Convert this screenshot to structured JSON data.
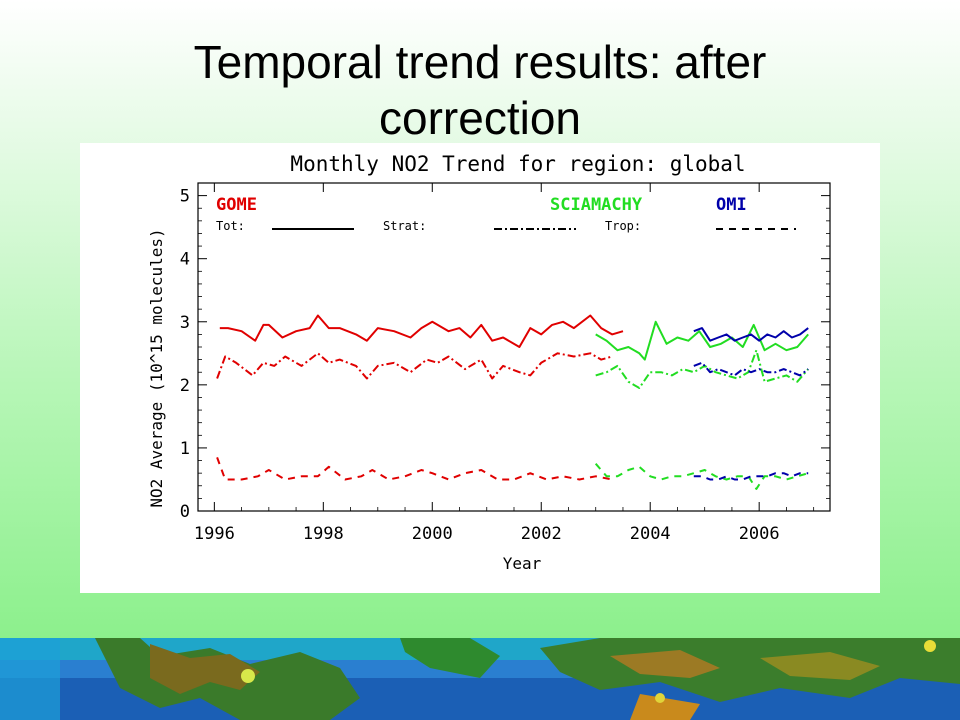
{
  "slide": {
    "title_line1": "Temporal trend results: after",
    "title_line2": "correction"
  },
  "chart_data": {
    "type": "line",
    "title": "Monthly NO2 Trend for region: global",
    "xlabel": "Year",
    "ylabel": "NO2 Average (10^15 molecules)",
    "xlim": [
      1995.7,
      2007.3
    ],
    "ylim": [
      0,
      5.2
    ],
    "xticks": [
      1996,
      1998,
      2000,
      2002,
      2004,
      2006
    ],
    "yticks": [
      0,
      1,
      2,
      3,
      4,
      5
    ],
    "grid": false,
    "legend": {
      "instruments": [
        {
          "name": "GOME",
          "color": "#e00000"
        },
        {
          "name": "SCIAMACHY",
          "color": "#22dd22"
        },
        {
          "name": "OMI",
          "color": "#0000aa"
        }
      ],
      "styles": [
        {
          "name": "Tot:",
          "dash": "solid"
        },
        {
          "name": "Strat:",
          "dash": "dashdot"
        },
        {
          "name": "Trop:",
          "dash": "dash"
        }
      ]
    },
    "series": [
      {
        "instrument": "GOME",
        "component": "Tot",
        "color": "#e00000",
        "dash": "solid",
        "x": [
          1996.1,
          1996.25,
          1996.5,
          1996.75,
          1996.9,
          1997.0,
          1997.25,
          1997.5,
          1997.75,
          1997.9,
          1998.1,
          1998.3,
          1998.6,
          1998.8,
          1999.0,
          1999.3,
          1999.6,
          1999.8,
          2000.0,
          2000.3,
          2000.5,
          2000.7,
          2000.9,
          2001.1,
          2001.3,
          2001.6,
          2001.8,
          2002.0,
          2002.2,
          2002.4,
          2002.6,
          2002.9,
          2003.1,
          2003.3,
          2003.5
        ],
        "y": [
          2.9,
          2.9,
          2.85,
          2.7,
          2.95,
          2.95,
          2.75,
          2.85,
          2.9,
          3.1,
          2.9,
          2.9,
          2.8,
          2.7,
          2.9,
          2.85,
          2.75,
          2.9,
          3.0,
          2.85,
          2.9,
          2.75,
          2.95,
          2.7,
          2.75,
          2.6,
          2.9,
          2.8,
          2.95,
          3.0,
          2.9,
          3.1,
          2.9,
          2.8,
          2.85
        ]
      },
      {
        "instrument": "GOME",
        "component": "Strat",
        "color": "#e00000",
        "dash": "dashdot",
        "x": [
          1996.05,
          1996.2,
          1996.4,
          1996.7,
          1996.9,
          1997.1,
          1997.3,
          1997.6,
          1997.9,
          1998.1,
          1998.3,
          1998.6,
          1998.8,
          1999.0,
          1999.3,
          1999.6,
          1999.9,
          2000.1,
          2000.3,
          2000.6,
          2000.9,
          2001.1,
          2001.3,
          2001.6,
          2001.8,
          2002.0,
          2002.3,
          2002.6,
          2002.9,
          2003.1,
          2003.3
        ],
        "y": [
          2.1,
          2.45,
          2.35,
          2.15,
          2.35,
          2.3,
          2.45,
          2.3,
          2.5,
          2.35,
          2.4,
          2.3,
          2.1,
          2.3,
          2.35,
          2.2,
          2.4,
          2.35,
          2.45,
          2.25,
          2.4,
          2.1,
          2.3,
          2.2,
          2.15,
          2.35,
          2.5,
          2.45,
          2.5,
          2.4,
          2.45
        ]
      },
      {
        "instrument": "GOME",
        "component": "Trop",
        "color": "#e00000",
        "dash": "dash",
        "x": [
          1996.05,
          1996.2,
          1996.5,
          1996.8,
          1997.0,
          1997.3,
          1997.6,
          1997.9,
          1998.1,
          1998.4,
          1998.7,
          1998.9,
          1999.2,
          1999.5,
          1999.8,
          2000.0,
          2000.3,
          2000.6,
          2000.9,
          2001.2,
          2001.5,
          2001.8,
          2002.1,
          2002.4,
          2002.7,
          2003.0,
          2003.3
        ],
        "y": [
          0.85,
          0.5,
          0.5,
          0.55,
          0.65,
          0.5,
          0.55,
          0.55,
          0.7,
          0.5,
          0.55,
          0.65,
          0.5,
          0.55,
          0.65,
          0.6,
          0.5,
          0.6,
          0.65,
          0.5,
          0.5,
          0.6,
          0.5,
          0.55,
          0.5,
          0.55,
          0.5
        ]
      },
      {
        "instrument": "SCIAMACHY",
        "component": "Tot",
        "color": "#22dd22",
        "dash": "solid",
        "x": [
          2003.0,
          2003.2,
          2003.4,
          2003.6,
          2003.8,
          2003.9,
          2004.1,
          2004.3,
          2004.5,
          2004.7,
          2004.9,
          2005.1,
          2005.3,
          2005.5,
          2005.7,
          2005.9,
          2006.1,
          2006.3,
          2006.5,
          2006.7,
          2006.9
        ],
        "y": [
          2.8,
          2.7,
          2.55,
          2.6,
          2.5,
          2.4,
          3.0,
          2.65,
          2.75,
          2.7,
          2.85,
          2.6,
          2.65,
          2.75,
          2.6,
          2.95,
          2.55,
          2.65,
          2.55,
          2.6,
          2.8
        ]
      },
      {
        "instrument": "SCIAMACHY",
        "component": "Strat",
        "color": "#22dd22",
        "dash": "dashdot",
        "x": [
          2003.0,
          2003.2,
          2003.4,
          2003.6,
          2003.8,
          2004.0,
          2004.2,
          2004.4,
          2004.6,
          2004.8,
          2005.0,
          2005.2,
          2005.4,
          2005.6,
          2005.8,
          2005.95,
          2006.1,
          2006.3,
          2006.5,
          2006.7,
          2006.9
        ],
        "y": [
          2.15,
          2.2,
          2.3,
          2.05,
          1.95,
          2.2,
          2.2,
          2.15,
          2.25,
          2.2,
          2.3,
          2.2,
          2.15,
          2.1,
          2.2,
          2.55,
          2.05,
          2.1,
          2.15,
          2.05,
          2.25
        ]
      },
      {
        "instrument": "SCIAMACHY",
        "component": "Trop",
        "color": "#22dd22",
        "dash": "dash",
        "x": [
          2003.0,
          2003.2,
          2003.4,
          2003.6,
          2003.8,
          2004.0,
          2004.2,
          2004.4,
          2004.6,
          2004.8,
          2005.0,
          2005.2,
          2005.4,
          2005.6,
          2005.8,
          2005.95,
          2006.1,
          2006.3,
          2006.5,
          2006.7,
          2006.9
        ],
        "y": [
          0.75,
          0.55,
          0.55,
          0.65,
          0.7,
          0.55,
          0.5,
          0.55,
          0.55,
          0.6,
          0.65,
          0.55,
          0.5,
          0.55,
          0.55,
          0.35,
          0.55,
          0.55,
          0.5,
          0.55,
          0.6
        ]
      },
      {
        "instrument": "OMI",
        "component": "Tot",
        "color": "#0000aa",
        "dash": "solid",
        "x": [
          2004.8,
          2004.95,
          2005.1,
          2005.25,
          2005.4,
          2005.55,
          2005.7,
          2005.85,
          2006.0,
          2006.15,
          2006.3,
          2006.45,
          2006.6,
          2006.75,
          2006.9
        ],
        "y": [
          2.85,
          2.9,
          2.7,
          2.75,
          2.8,
          2.7,
          2.75,
          2.8,
          2.7,
          2.8,
          2.75,
          2.85,
          2.75,
          2.8,
          2.9
        ]
      },
      {
        "instrument": "OMI",
        "component": "Strat",
        "color": "#0000aa",
        "dash": "dashdot",
        "x": [
          2004.8,
          2004.95,
          2005.1,
          2005.25,
          2005.4,
          2005.55,
          2005.7,
          2005.85,
          2006.0,
          2006.15,
          2006.3,
          2006.45,
          2006.6,
          2006.75,
          2006.9
        ],
        "y": [
          2.3,
          2.35,
          2.2,
          2.25,
          2.2,
          2.15,
          2.25,
          2.2,
          2.25,
          2.2,
          2.2,
          2.25,
          2.2,
          2.15,
          2.25
        ]
      },
      {
        "instrument": "OMI",
        "component": "Trop",
        "color": "#0000aa",
        "dash": "dash",
        "x": [
          2004.8,
          2004.95,
          2005.1,
          2005.25,
          2005.4,
          2005.55,
          2005.7,
          2005.85,
          2006.0,
          2006.15,
          2006.3,
          2006.45,
          2006.6,
          2006.75,
          2006.9
        ],
        "y": [
          0.55,
          0.55,
          0.5,
          0.5,
          0.55,
          0.5,
          0.5,
          0.55,
          0.55,
          0.55,
          0.6,
          0.6,
          0.55,
          0.6,
          0.6
        ]
      }
    ]
  }
}
